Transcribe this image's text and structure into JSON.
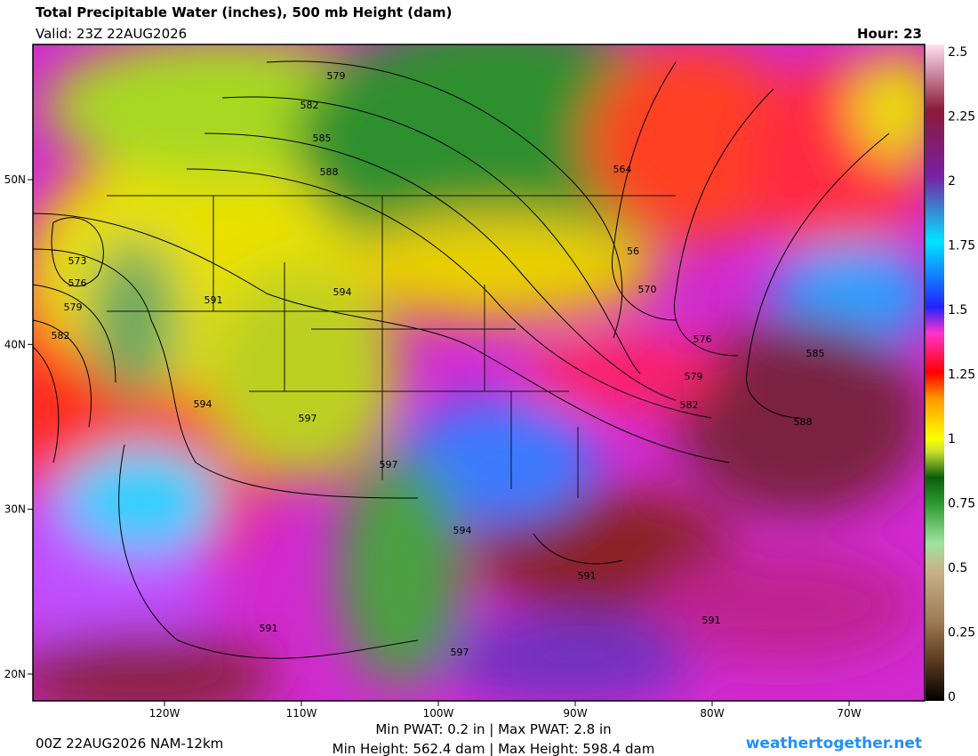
{
  "header": {
    "title": "Total Precipitable Water (inches), 500 mb Height (dam)",
    "valid": "Valid: 23Z 22AUG2026",
    "hour": "Hour: 23"
  },
  "map": {
    "lat_labels": [
      "50N",
      "40N",
      "30N",
      "20N"
    ],
    "lon_labels": [
      "120W",
      "110W",
      "100W",
      "90W",
      "80W",
      "70W"
    ],
    "contour_labels": [
      "579",
      "582",
      "585",
      "588",
      "564",
      "573",
      "576",
      "579",
      "582",
      "591",
      "594",
      "56",
      "570",
      "576",
      "579",
      "582",
      "585",
      "588",
      "594",
      "597",
      "597",
      "594",
      "591",
      "591",
      "591",
      "597"
    ]
  },
  "colorbar": {
    "ticks": [
      "2.5",
      "2.25",
      "2",
      "1.75",
      "1.5",
      "1.25",
      "1",
      "0.75",
      "0.5",
      "0.25",
      "0"
    ]
  },
  "footer": {
    "run": "00Z 22AUG2026 NAM-12km",
    "pwat": "Min PWAT:   0.2 in | Max PWAT:   2.8 in",
    "height": "Min Height: 562.4 dam | Max Height: 598.4 dam",
    "site": "weathertogether.net"
  }
}
